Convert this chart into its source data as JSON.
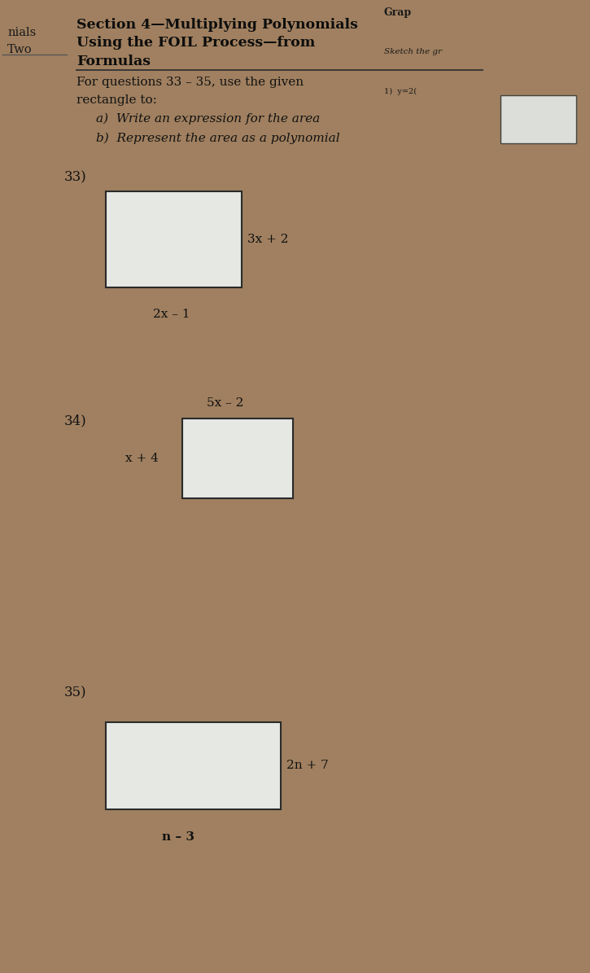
{
  "paper_color": "#e8eae6",
  "paper_color2": "#dfe0db",
  "brown_bg": "#a08060",
  "title_line1": "Section 4—Multiplying Polynomials",
  "title_line2": "Using the FOIL Process—from",
  "title_line3": "Formulas",
  "left_text_line1": "nials",
  "left_text_line2": "Two",
  "top_right_line1": "Grap",
  "top_right_line2": "Sketch the gr",
  "top_right_line3": "1)  y=2(",
  "instructions_line1": "For questions 33 – 35, use the given",
  "instructions_line2": "rectangle to:",
  "instr_a": "a)  Write an expression for the area",
  "instr_b": "b)  Represent the area as a polynomial",
  "q33_label": "33)",
  "q33_width_label": "2x – 1",
  "q33_height_label": "3x + 2",
  "q34_label": "34)",
  "q34_width_label": "5x – 2",
  "q34_height_label": "x + 4",
  "q35_label": "35)",
  "q35_width_label": "n – 3",
  "q35_height_label": "2n + 7"
}
